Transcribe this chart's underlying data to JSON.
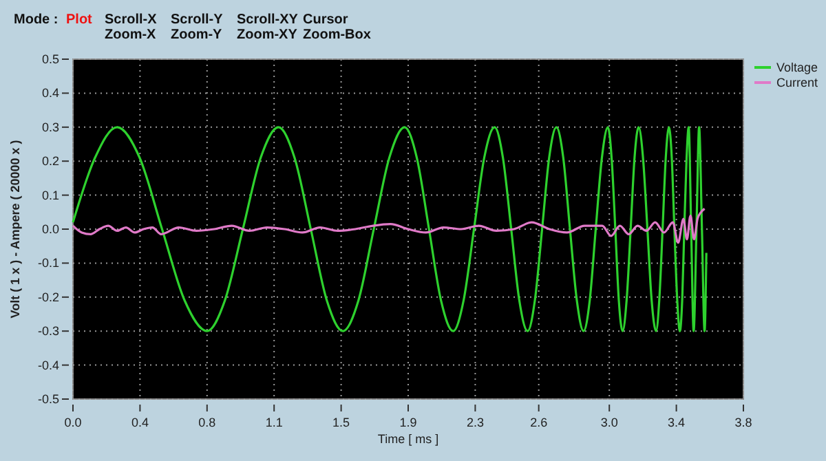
{
  "chart_data": {
    "type": "line",
    "xlabel": "Time [ ms ]",
    "ylabel": "Volt ( 1 x ) - Ampere ( 20000 x )",
    "annotations": [
      "Mode :",
      "Plot",
      "Scroll-X",
      "Zoom-X",
      "Scroll-Y",
      "Zoom-Y",
      "Scroll-XY",
      "Zoom-XY",
      "Cursor",
      "Zoom-Box"
    ],
    "xlim": [
      0,
      3.8
    ],
    "xticks": [
      {
        "value": 0,
        "label": "0.0"
      },
      {
        "value": 0.38,
        "label": "0.4"
      },
      {
        "value": 0.76,
        "label": "0.8"
      },
      {
        "value": 1.14,
        "label": "1.1"
      },
      {
        "value": 1.52,
        "label": "1.5"
      },
      {
        "value": 1.9,
        "label": "1.9"
      },
      {
        "value": 2.28,
        "label": "2.3"
      },
      {
        "value": 2.64,
        "label": "2.6"
      },
      {
        "value": 3.04,
        "label": "3.0"
      },
      {
        "value": 3.42,
        "label": "3.4"
      },
      {
        "value": 3.8,
        "label": "3.8"
      }
    ],
    "ylim": [
      -0.5,
      0.5
    ],
    "yticks": [
      -0.5,
      -0.4,
      -0.3,
      -0.2,
      -0.1,
      {
        "value": 0,
        "label": "0.0"
      },
      0.1,
      0.2,
      0.3,
      0.4,
      0.5
    ],
    "grid": true,
    "legend": "top right",
    "line_style": "solid",
    "series": [
      {
        "name": "Voltage",
        "color": "#2ed12e",
        "x": [
          0,
          0.125,
          0.25,
          0.378,
          0.505,
          0.633,
          0.76,
          0.861,
          0.963,
          1.064,
          1.165,
          1.256,
          1.348,
          1.439,
          1.53,
          1.618,
          1.705,
          1.793,
          1.88,
          1.949,
          2.018,
          2.086,
          2.155,
          2.214,
          2.273,
          2.331,
          2.39,
          2.437,
          2.484,
          2.53,
          2.577,
          2.618,
          2.659,
          2.699,
          2.74,
          2.779,
          2.817,
          2.856,
          2.894,
          2.929,
          2.963,
          2.998,
          3.032,
          3.053,
          3.074,
          3.094,
          3.115,
          3.138,
          3.161,
          3.183,
          3.206,
          3.231,
          3.256,
          3.28,
          3.305,
          3.323,
          3.342,
          3.36,
          3.378,
          3.394,
          3.409,
          3.425,
          3.44,
          3.453,
          3.465,
          3.478,
          3.49,
          3.504,
          3.518,
          3.534,
          3.549,
          3.565,
          3.58,
          3.59
        ],
        "values": [
          0.02,
          0.21,
          0.3,
          0.21,
          0,
          -0.21,
          -0.3,
          -0.21,
          0,
          0.21,
          0.3,
          0.21,
          0,
          -0.21,
          -0.3,
          -0.21,
          0,
          0.21,
          0.3,
          0.21,
          0,
          -0.21,
          -0.3,
          -0.21,
          0,
          0.21,
          0.3,
          0.21,
          0,
          -0.21,
          -0.3,
          -0.21,
          0,
          0.21,
          0.3,
          0.21,
          0,
          -0.21,
          -0.3,
          -0.21,
          0,
          0.21,
          0.3,
          0.21,
          0,
          -0.21,
          -0.3,
          -0.21,
          0,
          0.21,
          0.3,
          0.21,
          0,
          -0.21,
          -0.3,
          -0.21,
          0,
          0.21,
          0.3,
          0.21,
          0,
          -0.21,
          -0.3,
          -0.21,
          0,
          0.21,
          0.3,
          0,
          -0.3,
          0,
          0.3,
          0,
          -0.3,
          -0.07
        ]
      },
      {
        "name": "Current",
        "color": "#e07ac8",
        "x": [
          0,
          0.05,
          0.1,
          0.15,
          0.2,
          0.25,
          0.3,
          0.35,
          0.4,
          0.45,
          0.5,
          0.6,
          0.7,
          0.8,
          0.9,
          1.0,
          1.1,
          1.2,
          1.3,
          1.4,
          1.5,
          1.6,
          1.7,
          1.8,
          1.9,
          2.0,
          2.1,
          2.2,
          2.3,
          2.4,
          2.5,
          2.6,
          2.7,
          2.8,
          2.9,
          3.0,
          3.05,
          3.1,
          3.15,
          3.2,
          3.25,
          3.3,
          3.35,
          3.4,
          3.43,
          3.46,
          3.48,
          3.5,
          3.52,
          3.54,
          3.56,
          3.58
        ],
        "values": [
          0.01,
          -0.01,
          -0.015,
          0,
          0.01,
          -0.005,
          0.005,
          -0.01,
          0,
          0.005,
          -0.015,
          0.005,
          -0.005,
          0,
          0.01,
          -0.005,
          0.005,
          0,
          -0.01,
          0.005,
          -0.005,
          0,
          0.01,
          0.015,
          0,
          -0.01,
          0.005,
          0,
          0.01,
          -0.005,
          0,
          0.02,
          0,
          -0.01,
          0.01,
          0.01,
          -0.02,
          0.01,
          -0.015,
          0.01,
          -0.005,
          0.02,
          -0.01,
          0.02,
          -0.04,
          0.03,
          -0.03,
          0.04,
          -0.03,
          0.03,
          0.05,
          0.06
        ]
      }
    ]
  }
}
